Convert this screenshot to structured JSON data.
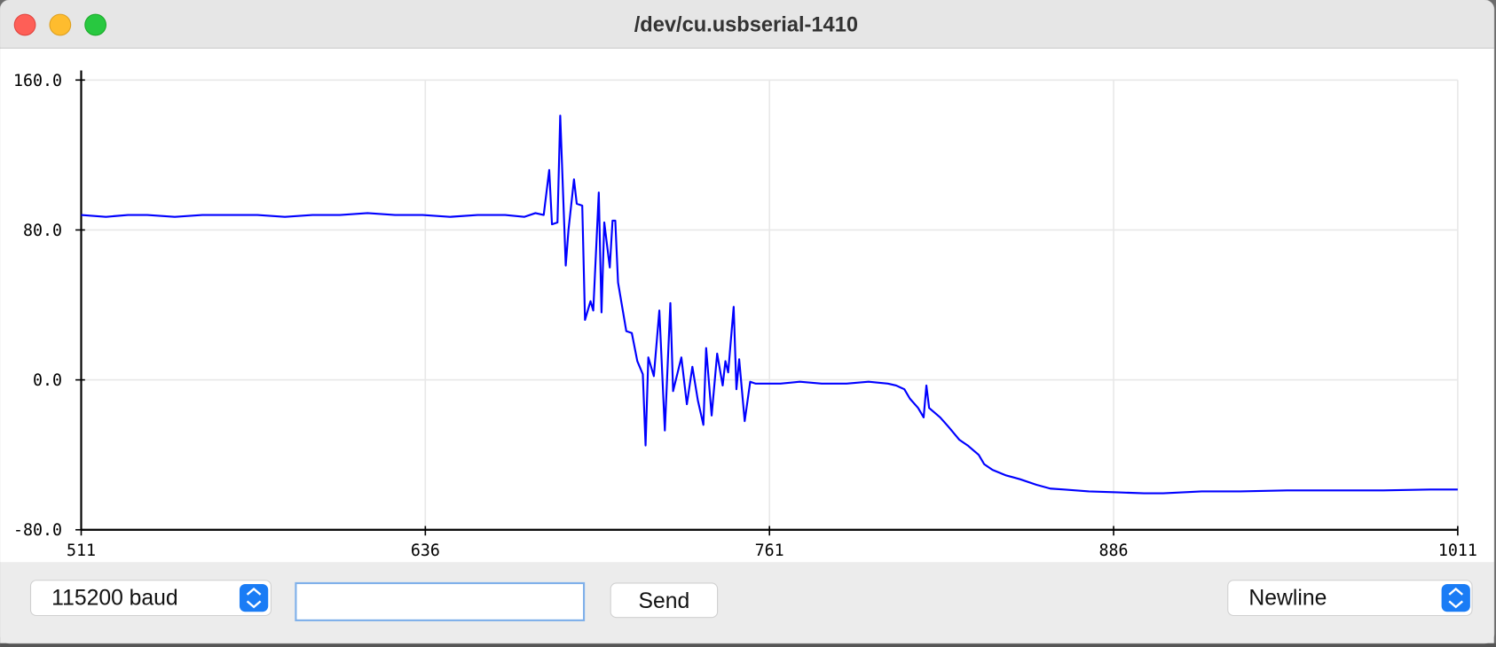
{
  "window": {
    "title": "/dev/cu.usbserial-1410"
  },
  "chart_data": {
    "type": "line",
    "x": [
      511,
      520,
      528,
      535,
      545,
      555,
      565,
      575,
      585,
      595,
      605,
      615,
      625,
      635,
      645,
      655,
      665,
      672,
      676,
      679,
      681,
      682,
      684,
      685,
      687,
      688,
      690,
      691,
      693,
      694,
      696,
      697,
      699,
      700,
      701,
      703,
      704,
      705,
      706,
      709,
      711,
      713,
      715,
      716,
      717,
      719,
      721,
      723,
      725,
      726,
      729,
      731,
      733,
      735,
      737,
      738,
      740,
      742,
      744,
      745,
      746,
      748,
      749,
      750,
      752,
      754,
      756,
      759,
      765,
      772,
      780,
      789,
      797,
      804,
      807,
      810,
      812,
      815,
      817,
      818,
      819,
      823,
      826,
      830,
      833,
      837,
      839,
      842,
      847,
      852,
      858,
      863,
      868,
      877,
      887,
      897,
      904,
      918,
      932,
      949,
      967,
      984,
      1001,
      1011
    ],
    "values": [
      88,
      87,
      88,
      88,
      87,
      88,
      88,
      88,
      87,
      88,
      88,
      89,
      88,
      88,
      87,
      88,
      88,
      87,
      89,
      88,
      112,
      83,
      84,
      141,
      61,
      80,
      107,
      94,
      93,
      32,
      42,
      37,
      100,
      36,
      84,
      60,
      85,
      85,
      52,
      26,
      25,
      10,
      3,
      -35,
      12,
      2,
      37,
      -27,
      41,
      -6,
      12,
      -13,
      7,
      -11,
      -24,
      17,
      -19,
      14,
      -3,
      10,
      4,
      39,
      -5,
      11,
      -22,
      -1,
      -2,
      -2,
      -2,
      -1,
      -2,
      -2,
      -1,
      -2,
      -3,
      -5,
      -10,
      -15,
      -20,
      -3,
      -15,
      -20,
      -25,
      -32,
      -35,
      -40,
      -45,
      -48,
      -51,
      -53,
      -56,
      -58,
      -58.5,
      -59.5,
      -60,
      -60.5,
      -60.5,
      -59.5,
      -59.5,
      -59,
      -59,
      -59,
      -58.5,
      -58.5
    ],
    "color": "#0000ff",
    "xlim": [
      511,
      1011
    ],
    "xticks": [
      511,
      636,
      761,
      886,
      1011
    ],
    "ylim": [
      -80,
      160
    ],
    "yticks": [
      {
        "value": -80,
        "label": "-80.0"
      },
      {
        "value": 0,
        "label": "0.0"
      },
      {
        "value": 80,
        "label": "80.0"
      },
      {
        "value": 160,
        "label": "160.0"
      }
    ],
    "grid": true
  },
  "controls": {
    "baud": "115200 baud",
    "send": "Send",
    "line_ending": "Newline"
  }
}
